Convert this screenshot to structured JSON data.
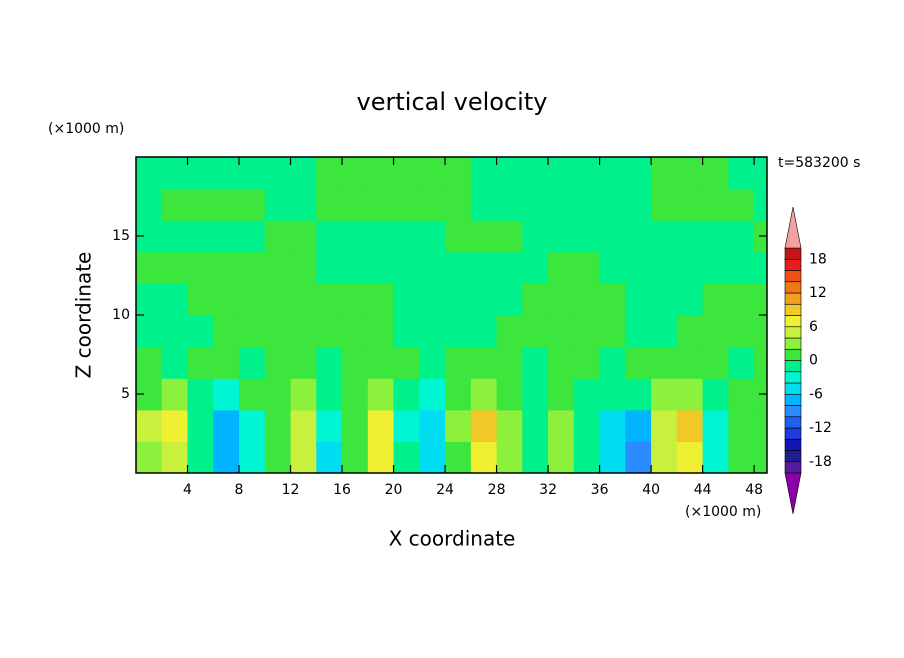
{
  "chart_data": {
    "type": "contour",
    "title": "vertical velocity",
    "y_unit_label": "(×1000 m)",
    "x_unit_label": "(×1000 m)",
    "time_label": "t=583200 s",
    "xlabel": "X coordinate",
    "ylabel": "Z coordinate",
    "xlim": [
      0,
      49
    ],
    "ylim": [
      0,
      20
    ],
    "xticks": [
      4,
      8,
      12,
      16,
      20,
      24,
      28,
      32,
      36,
      40,
      44,
      48
    ],
    "yticks": [
      5,
      10,
      15
    ],
    "x": [
      1,
      3,
      5,
      7,
      9,
      11,
      13,
      15,
      17,
      19,
      21,
      23,
      25,
      27,
      29,
      31,
      33,
      35,
      37,
      39,
      41,
      43,
      45,
      47,
      49
    ],
    "y": [
      1,
      3,
      5,
      7,
      9,
      11,
      13,
      15,
      17,
      19
    ],
    "z": [
      [
        3,
        5,
        -1,
        -8,
        -3,
        1,
        5,
        -5,
        1,
        6,
        -2,
        -5,
        1,
        7,
        3,
        -1,
        3,
        -1,
        -5,
        -9,
        5,
        7,
        -3,
        1,
        1
      ],
      [
        4,
        6,
        -1,
        -7,
        -3,
        1,
        5,
        -4,
        1,
        7,
        -3,
        -5,
        2,
        9,
        3,
        -2,
        2,
        -2,
        -5,
        -7,
        5,
        8,
        -3,
        1,
        1
      ],
      [
        1,
        2,
        -1,
        -3,
        1,
        1,
        2,
        -2,
        1,
        2,
        -2,
        -3,
        1,
        3,
        1,
        -2,
        1,
        -1,
        -2,
        -2,
        2,
        3,
        -1,
        1,
        1
      ],
      [
        1,
        -1,
        1,
        1,
        -1,
        1,
        1,
        -1,
        1,
        1,
        1,
        -1,
        1,
        1,
        1,
        -1,
        1,
        1,
        -1,
        1,
        1,
        1,
        1,
        -1,
        1
      ],
      [
        -1,
        -1,
        -1,
        1,
        1,
        1,
        1,
        1,
        1,
        1,
        -1,
        -1,
        -1,
        -1,
        1,
        1,
        1,
        1,
        1,
        -1,
        -1,
        1,
        1,
        1,
        1
      ],
      [
        -1,
        -1,
        1,
        1,
        1,
        1,
        1,
        1,
        1,
        1,
        -1,
        -1,
        -1,
        -1,
        -1,
        1,
        1,
        1,
        1,
        -1,
        -1,
        -1,
        1,
        1,
        1
      ],
      [
        1,
        1,
        1,
        1,
        1,
        1,
        1,
        -1,
        -1,
        -1,
        -1,
        -1,
        -1,
        -1,
        -1,
        -1,
        1,
        1,
        -1,
        -1,
        -1,
        -1,
        -1,
        -1,
        -1
      ],
      [
        -1,
        -1,
        -1,
        -1,
        -1,
        1,
        1,
        -1,
        -1,
        -1,
        -1,
        -1,
        1,
        1,
        1,
        -1,
        -1,
        -1,
        -1,
        -1,
        -1,
        -1,
        -1,
        -1,
        1
      ],
      [
        -1,
        1,
        1,
        1,
        1,
        -1,
        -1,
        1,
        1,
        1,
        1,
        1,
        1,
        -1,
        -1,
        -1,
        -1,
        -1,
        -1,
        -1,
        1,
        1,
        1,
        1,
        -1
      ],
      [
        -1,
        -1,
        -1,
        -1,
        -1,
        -1,
        -1,
        1,
        1,
        1,
        1,
        1,
        1,
        -1,
        -1,
        -1,
        -1,
        -1,
        -1,
        -1,
        1,
        1,
        1,
        -1,
        -1
      ]
    ],
    "levels": [
      -20,
      -18,
      -16,
      -14,
      -12,
      -10,
      -8,
      -6,
      -4,
      -2,
      0,
      2,
      4,
      6,
      8,
      10,
      12,
      14,
      16,
      18,
      20
    ],
    "colors": [
      "#5a1aa0",
      "#1e1e8c",
      "#1414b4",
      "#1e3cdc",
      "#2060f0",
      "#2a8cff",
      "#00b4ff",
      "#00dcf0",
      "#00f5d2",
      "#00f08c",
      "#3ce63c",
      "#8cf03c",
      "#c8f03c",
      "#f0f032",
      "#f0c828",
      "#f0a01e",
      "#f07814",
      "#f05014",
      "#e61e1e",
      "#c81414"
    ],
    "under_color": "#8b00a8",
    "over_color": "#f5a0a0",
    "colorbar_ticks": [
      18,
      12,
      6,
      0,
      -6,
      -12,
      -18
    ]
  }
}
